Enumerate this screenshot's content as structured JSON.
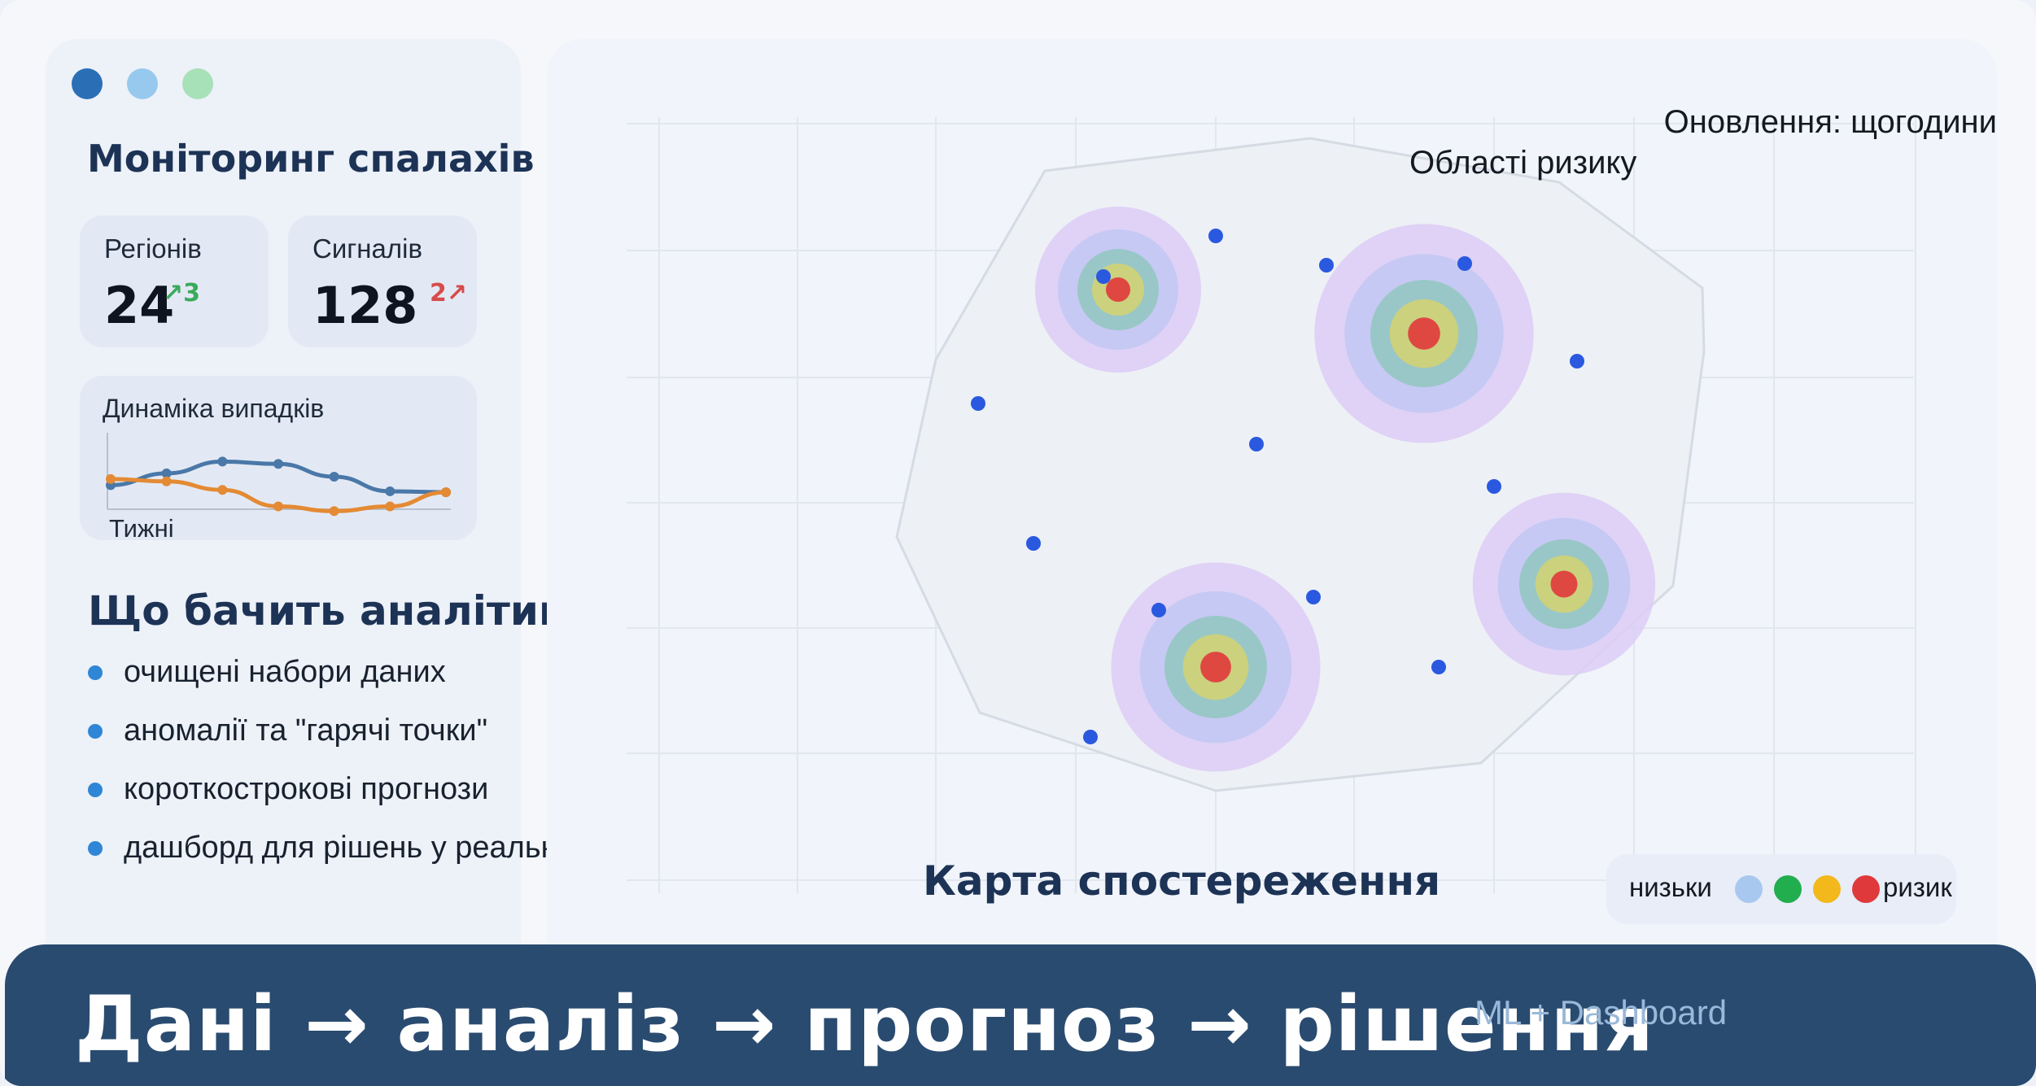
{
  "window": {
    "controls": [
      "close",
      "minimize",
      "maximize"
    ]
  },
  "sidebar": {
    "title": "Моніторинг спалахів",
    "stats": [
      {
        "label": "Регіонів",
        "value": "24",
        "delta": "↗3",
        "delta_color": "#3aaa5c"
      },
      {
        "label": "Сигналів",
        "value": "128",
        "delta": "2↗",
        "delta_color": "#d64b4b"
      }
    ],
    "trend": {
      "title": "Динаміка випадків",
      "xlabel": "Тижні",
      "series": [
        {
          "color": "#4a78a8",
          "values": [
            0.2,
            0.45,
            0.7,
            0.65,
            0.38,
            0.07,
            0.05
          ]
        },
        {
          "color": "#e48a34",
          "values": [
            0.33,
            0.28,
            0.1,
            -0.25,
            -0.35,
            -0.25,
            0.05
          ]
        }
      ]
    },
    "analyst_title": "Що бачить аналітик",
    "bullets": [
      "очищені набори даних",
      "аномалії та \"гарячі точки\"",
      "короткострокові прогнози",
      "дашборд для рішень у реальному часі"
    ]
  },
  "map": {
    "update_label": "Оновлення: щогодини",
    "regions_label": "Області ризику",
    "title": "Карта спостереження",
    "legend": {
      "low": "низьки",
      "high": "ризик",
      "colors": [
        "#a9c8f0",
        "#22ad4f",
        "#f3b81c",
        "#e0393b"
      ]
    },
    "risk_ring_colors": [
      "#dccdf6",
      "#c3c8f3",
      "#93c7c2",
      "#d2d175",
      "#e0393b"
    ],
    "point_color": "#2a59e0"
  },
  "banner": {
    "main": "Дані → аналіз → прогноз → рішення",
    "sub": "ML + Dashboard"
  }
}
